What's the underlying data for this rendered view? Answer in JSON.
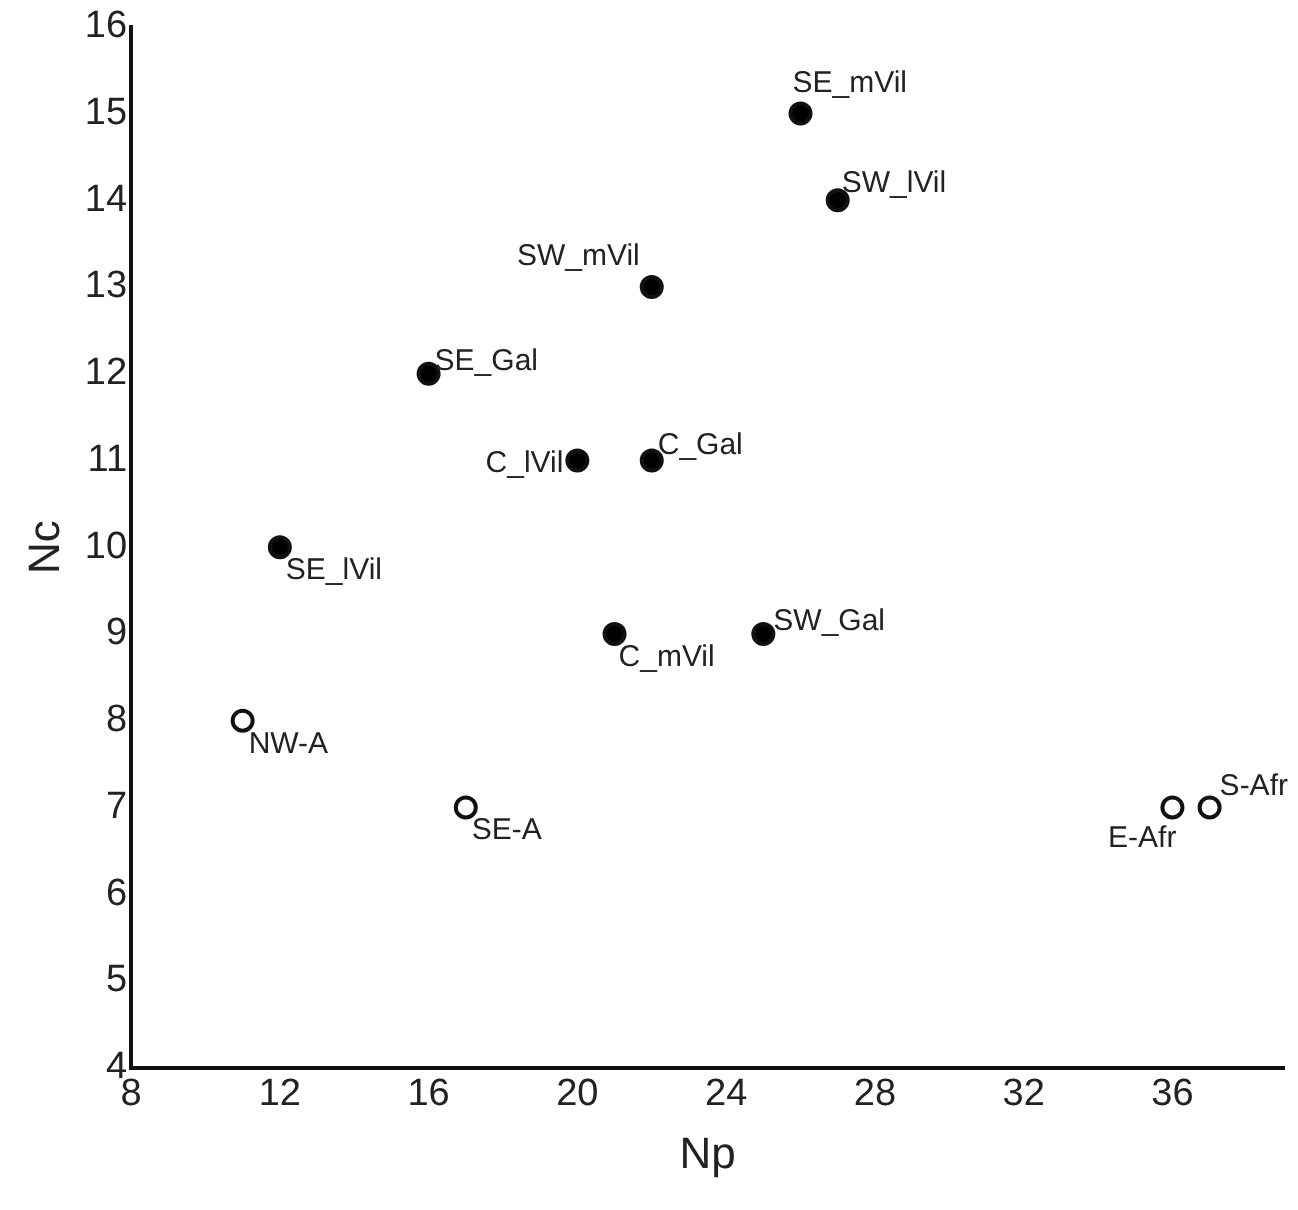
{
  "chart_data": {
    "type": "scatter",
    "xlabel": "Np",
    "ylabel": "Nc",
    "xlim": [
      8,
      39
    ],
    "xticks": [
      8,
      12,
      16,
      20,
      24,
      28,
      32,
      36
    ],
    "ylim": [
      4,
      16
    ],
    "yticks": [
      4,
      5,
      6,
      7,
      8,
      9,
      10,
      11,
      12,
      13,
      14,
      15,
      16
    ],
    "grid": false,
    "legend": false,
    "marker": "circle",
    "series": [
      {
        "color": "#000000",
        "x": [
          26,
          27,
          22,
          16,
          20,
          22,
          12,
          21,
          25
        ],
        "values": [
          15,
          14,
          13,
          12,
          11,
          11,
          10,
          9,
          9
        ]
      },
      {
        "color": "#ffffff",
        "x": [
          11,
          17,
          36,
          37
        ],
        "values": [
          8,
          7,
          7,
          7
        ]
      }
    ],
    "annotations": [
      {
        "text": "SE_mVil",
        "x": 26,
        "y": 15
      },
      {
        "text": "SW_lVil",
        "x": 27,
        "y": 14
      },
      {
        "text": "SW_mVil",
        "x": 22,
        "y": 13
      },
      {
        "text": "SE_Gal",
        "x": 16,
        "y": 12
      },
      {
        "text": "C_lVil",
        "x": 20,
        "y": 11
      },
      {
        "text": "C_Gal",
        "x": 22,
        "y": 11
      },
      {
        "text": "SE_lVil",
        "x": 12,
        "y": 10
      },
      {
        "text": "C_mVil",
        "x": 21,
        "y": 9
      },
      {
        "text": "SW_Gal",
        "x": 25,
        "y": 9
      },
      {
        "text": "NW-A",
        "x": 11,
        "y": 8
      },
      {
        "text": "SE-A",
        "x": 17,
        "y": 7
      },
      {
        "text": "E-Afr",
        "x": 36,
        "y": 7
      },
      {
        "text": "S-Afr",
        "x": 37,
        "y": 7
      }
    ]
  }
}
